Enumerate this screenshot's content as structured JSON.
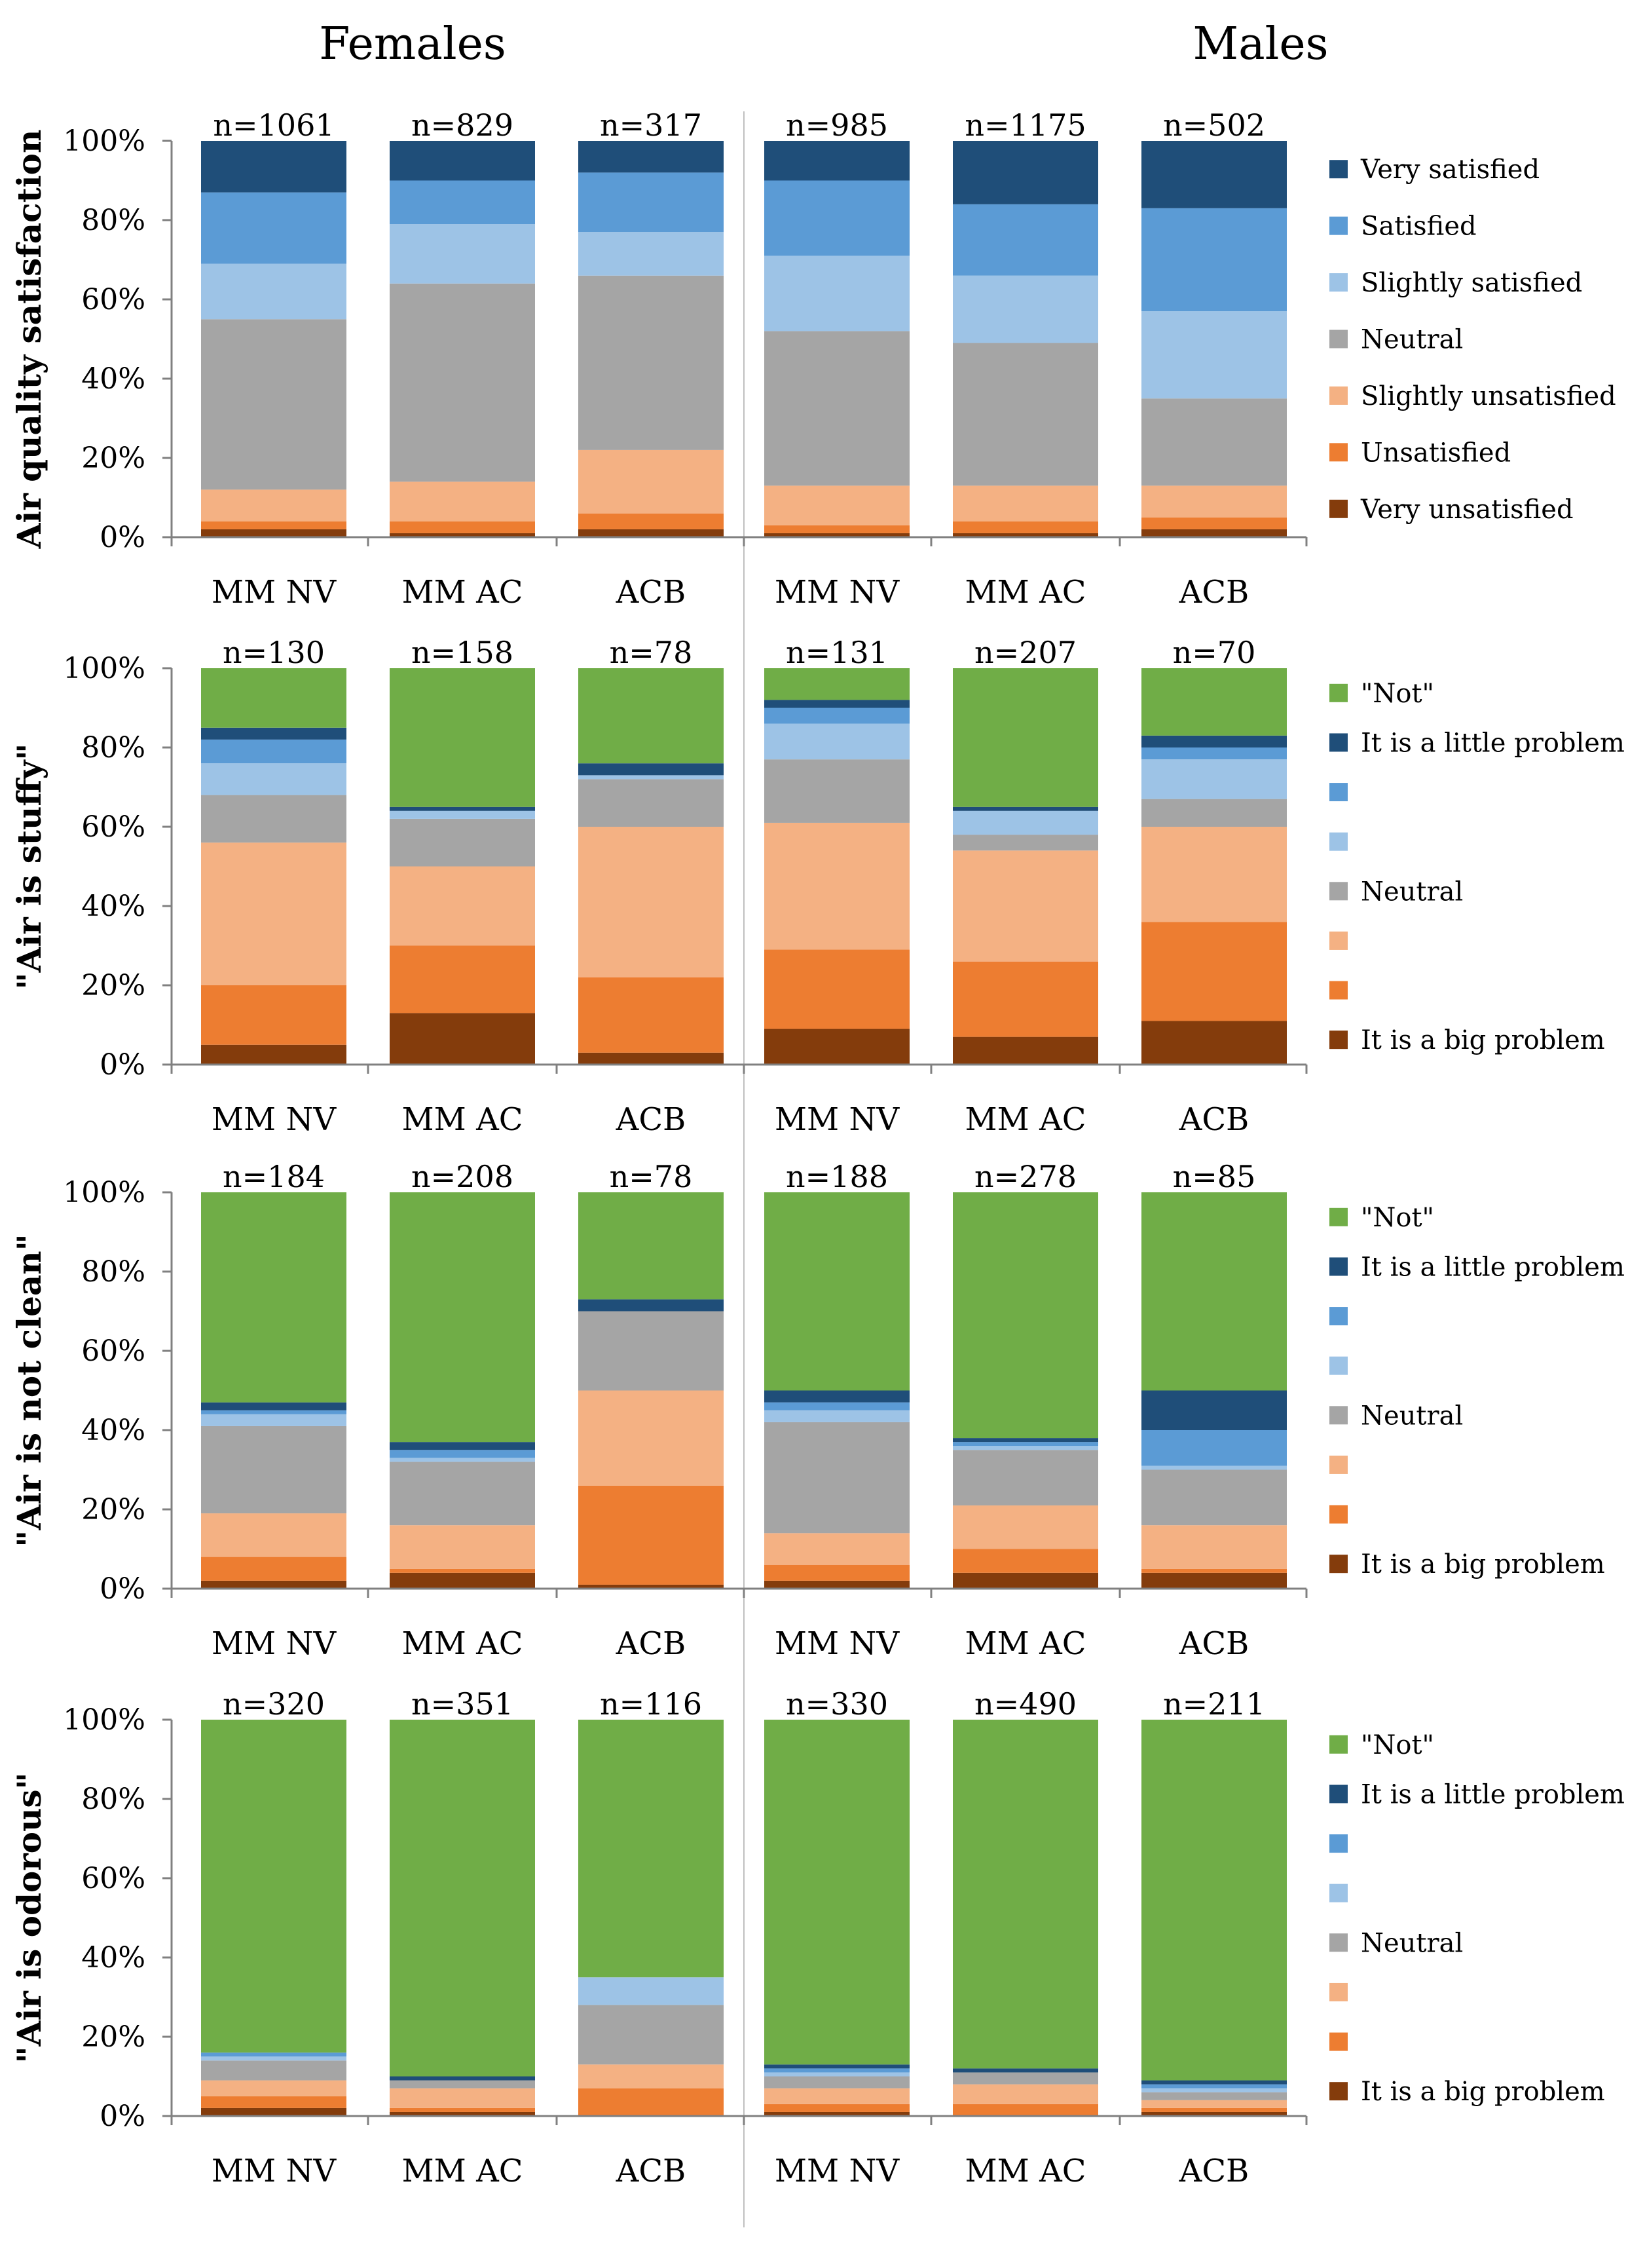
{
  "group_titles": [
    "Females",
    "Males"
  ],
  "y_ticks": [
    "0%",
    "20%",
    "40%",
    "60%",
    "80%",
    "100%"
  ],
  "chart_data": [
    {
      "type": "bar",
      "stacked": true,
      "title": "Air quality satisfaction",
      "ylabel": "Air quality satisfaction",
      "ylim": [
        0,
        100
      ],
      "categories": [
        "MM NV",
        "MM AC",
        "ACB",
        "MM NV",
        "MM AC",
        "ACB"
      ],
      "groups": [
        "Females",
        "Females",
        "Females",
        "Males",
        "Males",
        "Males"
      ],
      "n_labels": [
        "n=1061",
        "n=829",
        "n=317",
        "n=985",
        "n=1175",
        "n=502"
      ],
      "series": [
        {
          "name": "Very unsatisfied",
          "color": "#843C0C",
          "values": [
            2,
            1,
            2,
            1,
            1,
            2
          ]
        },
        {
          "name": "Unsatisfied",
          "color": "#ED7D31",
          "values": [
            2,
            3,
            4,
            2,
            3,
            3
          ]
        },
        {
          "name": "Slightly unsatisfied",
          "color": "#F4B183",
          "values": [
            8,
            10,
            16,
            10,
            9,
            8
          ]
        },
        {
          "name": "Neutral",
          "color": "#A5A5A5",
          "values": [
            43,
            50,
            44,
            39,
            36,
            22
          ]
        },
        {
          "name": "Slightly satisfied",
          "color": "#9DC3E6",
          "values": [
            14,
            15,
            11,
            19,
            17,
            22
          ]
        },
        {
          "name": "Satisfied",
          "color": "#5B9BD5",
          "values": [
            18,
            11,
            15,
            19,
            18,
            26
          ]
        },
        {
          "name": "Very satisfied",
          "color": "#1F4E79",
          "values": [
            13,
            10,
            8,
            10,
            16,
            17
          ]
        }
      ],
      "legend": [
        "Very satisfied",
        "Satisfied",
        "Slightly satisfied",
        "Neutral",
        "Slightly unsatisfied",
        "Unsatisfied",
        "Very unsatisfied"
      ],
      "legend_colors": [
        "#1F4E79",
        "#5B9BD5",
        "#9DC3E6",
        "#A5A5A5",
        "#F4B183",
        "#ED7D31",
        "#843C0C"
      ]
    },
    {
      "type": "bar",
      "stacked": true,
      "title": "\"Air is stuffy\"",
      "ylabel": "\"Air is stuffy\"",
      "ylim": [
        0,
        100
      ],
      "categories": [
        "MM NV",
        "MM AC",
        "ACB",
        "MM NV",
        "MM AC",
        "ACB"
      ],
      "groups": [
        "Females",
        "Females",
        "Females",
        "Males",
        "Males",
        "Males"
      ],
      "n_labels": [
        "n=130",
        "n=158",
        "n=78",
        "n=131",
        "n=207",
        "n=70"
      ],
      "series": [
        {
          "name": "It is a big problem",
          "color": "#843C0C",
          "values": [
            5,
            13,
            3,
            9,
            7,
            11
          ]
        },
        {
          "name": "",
          "color": "#ED7D31",
          "values": [
            15,
            17,
            19,
            20,
            19,
            25
          ]
        },
        {
          "name": "",
          "color": "#F4B183",
          "values": [
            36,
            20,
            38,
            32,
            28,
            24
          ]
        },
        {
          "name": "Neutral",
          "color": "#A5A5A5",
          "values": [
            12,
            12,
            12,
            16,
            4,
            7
          ]
        },
        {
          "name": "",
          "color": "#9DC3E6",
          "values": [
            8,
            2,
            1,
            9,
            6,
            10
          ]
        },
        {
          "name": "",
          "color": "#5B9BD5",
          "values": [
            6,
            0,
            0,
            4,
            0,
            3
          ]
        },
        {
          "name": "It is a little problem",
          "color": "#1F4E79",
          "values": [
            3,
            1,
            3,
            2,
            1,
            3
          ]
        },
        {
          "name": "\"Not\"",
          "color": "#70AD47",
          "values": [
            15,
            35,
            24,
            8,
            35,
            17
          ]
        }
      ],
      "legend": [
        "\"Not\"",
        "It is a little problem",
        "",
        "",
        "Neutral",
        "",
        "",
        "It is a big problem"
      ],
      "legend_colors": [
        "#70AD47",
        "#1F4E79",
        "#5B9BD5",
        "#9DC3E6",
        "#A5A5A5",
        "#F4B183",
        "#ED7D31",
        "#843C0C"
      ]
    },
    {
      "type": "bar",
      "stacked": true,
      "title": "\"Air is not clean\"",
      "ylabel": "\"Air is not clean\"",
      "ylim": [
        0,
        100
      ],
      "categories": [
        "MM NV",
        "MM AC",
        "ACB",
        "MM NV",
        "MM AC",
        "ACB"
      ],
      "groups": [
        "Females",
        "Females",
        "Females",
        "Males",
        "Males",
        "Males"
      ],
      "n_labels": [
        "n=184",
        "n=208",
        "n=78",
        "n=188",
        "n=278",
        "n=85"
      ],
      "series": [
        {
          "name": "It is a big problem",
          "color": "#843C0C",
          "values": [
            2,
            4,
            1,
            2,
            4,
            4
          ]
        },
        {
          "name": "",
          "color": "#ED7D31",
          "values": [
            6,
            1,
            25,
            4,
            6,
            1
          ]
        },
        {
          "name": "",
          "color": "#F4B183",
          "values": [
            11,
            11,
            24,
            8,
            11,
            11
          ]
        },
        {
          "name": "Neutral",
          "color": "#A5A5A5",
          "values": [
            22,
            16,
            20,
            28,
            14,
            14
          ]
        },
        {
          "name": "",
          "color": "#9DC3E6",
          "values": [
            3,
            1,
            0,
            3,
            1,
            1
          ]
        },
        {
          "name": "",
          "color": "#5B9BD5",
          "values": [
            1,
            2,
            0,
            2,
            1,
            9
          ]
        },
        {
          "name": "It is a little problem",
          "color": "#1F4E79",
          "values": [
            2,
            2,
            3,
            3,
            1,
            10
          ]
        },
        {
          "name": "\"Not\"",
          "color": "#70AD47",
          "values": [
            53,
            63,
            27,
            50,
            62,
            50
          ]
        }
      ],
      "legend": [
        "\"Not\"",
        "It is a little problem",
        "",
        "",
        "Neutral",
        "",
        "",
        "It is a big problem"
      ],
      "legend_colors": [
        "#70AD47",
        "#1F4E79",
        "#5B9BD5",
        "#9DC3E6",
        "#A5A5A5",
        "#F4B183",
        "#ED7D31",
        "#843C0C"
      ]
    },
    {
      "type": "bar",
      "stacked": true,
      "title": "\"Air is odorous\"",
      "ylabel": "\"Air is odorous\"",
      "ylim": [
        0,
        100
      ],
      "categories": [
        "MM NV",
        "MM AC",
        "ACB",
        "MM NV",
        "MM AC",
        "ACB"
      ],
      "groups": [
        "Females",
        "Females",
        "Females",
        "Males",
        "Males",
        "Males"
      ],
      "n_labels": [
        "n=320",
        "n=351",
        "n=116",
        "n=330",
        "n=490",
        "n=211"
      ],
      "series": [
        {
          "name": "It is a big problem",
          "color": "#843C0C",
          "values": [
            2,
            1,
            0,
            1,
            0,
            1
          ]
        },
        {
          "name": "",
          "color": "#ED7D31",
          "values": [
            3,
            1,
            7,
            2,
            3,
            1
          ]
        },
        {
          "name": "",
          "color": "#F4B183",
          "values": [
            4,
            5,
            6,
            4,
            5,
            2
          ]
        },
        {
          "name": "Neutral",
          "color": "#A5A5A5",
          "values": [
            5,
            2,
            15,
            3,
            3,
            2
          ]
        },
        {
          "name": "",
          "color": "#9DC3E6",
          "values": [
            1,
            0,
            7,
            1,
            0,
            1
          ]
        },
        {
          "name": "",
          "color": "#5B9BD5",
          "values": [
            1,
            0,
            0,
            1,
            0,
            1
          ]
        },
        {
          "name": "It is a little problem",
          "color": "#1F4E79",
          "values": [
            0,
            1,
            0,
            1,
            1,
            1
          ]
        },
        {
          "name": "\"Not\"",
          "color": "#70AD47",
          "values": [
            84,
            90,
            65,
            87,
            88,
            91
          ]
        }
      ],
      "legend": [
        "\"Not\"",
        "It is a little problem",
        "",
        "",
        "Neutral",
        "",
        "",
        "It is a big problem"
      ],
      "legend_colors": [
        "#70AD47",
        "#1F4E79",
        "#5B9BD5",
        "#9DC3E6",
        "#A5A5A5",
        "#F4B183",
        "#ED7D31",
        "#843C0C"
      ]
    }
  ]
}
